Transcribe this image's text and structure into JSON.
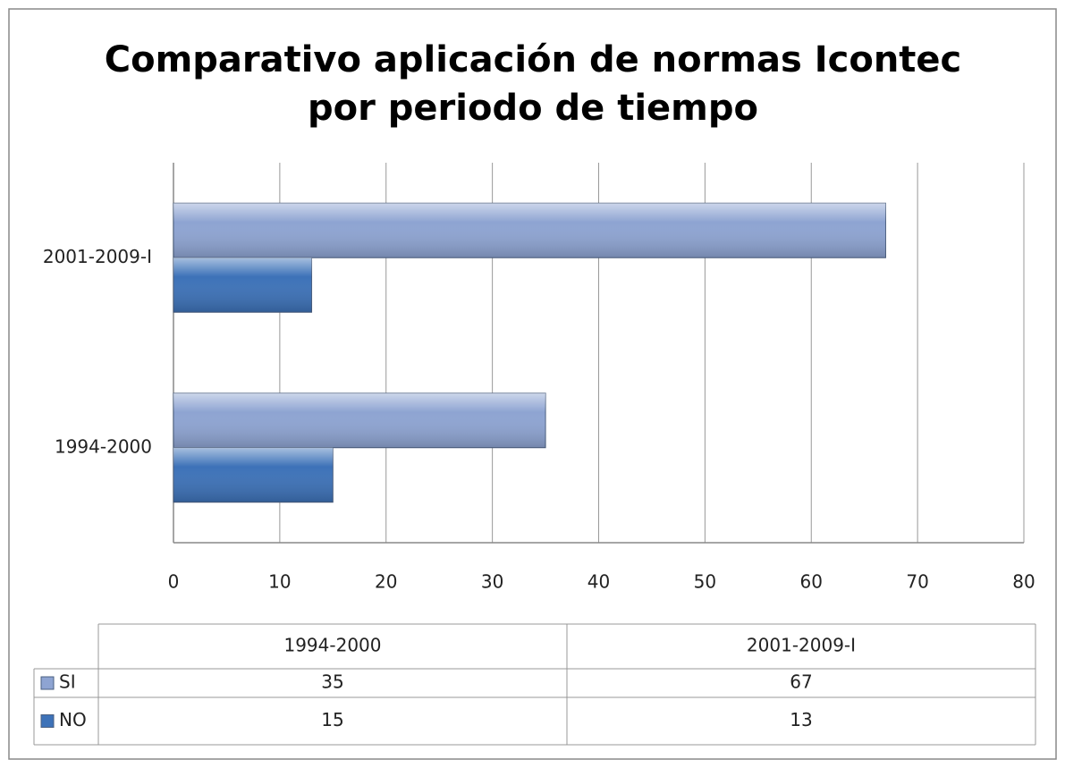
{
  "chart_data": {
    "type": "bar",
    "orientation": "horizontal",
    "title": "Comparativo aplicación de normas Icontec por periodo de tiempo",
    "categories": [
      "1994-2000",
      "2001-2009-I"
    ],
    "series": [
      {
        "name": "SI",
        "color": "#8ea4d2",
        "values": [
          35,
          67
        ]
      },
      {
        "name": "NO",
        "color": "#3d72b8",
        "values": [
          15,
          13
        ]
      }
    ],
    "xlim": [
      0,
      80
    ],
    "xticks": [
      0,
      10,
      20,
      30,
      40,
      50,
      60,
      70,
      80
    ],
    "grid": true,
    "data_table": true
  }
}
